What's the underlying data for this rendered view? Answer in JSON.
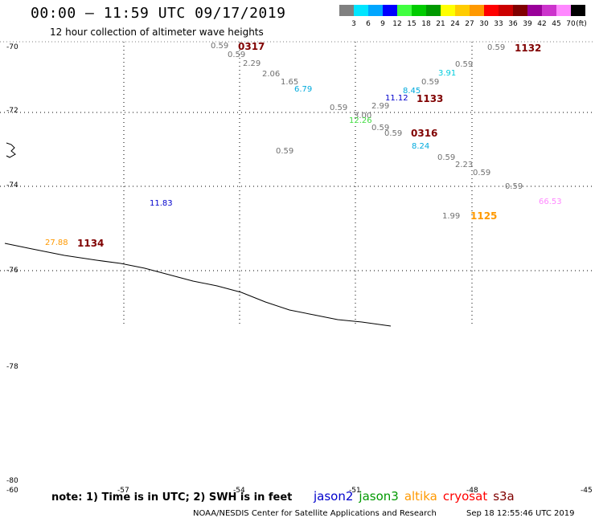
{
  "title": "00:00 — 11:59 UTC 09/17/2019",
  "subtitle": "12 hour collection of altimeter wave heights",
  "colorbar": {
    "unit": "(ft)",
    "swatches": [
      "#808080",
      "#00e5ff",
      "#00a6ff",
      "#0000ff",
      "#40ff40",
      "#00cc00",
      "#009900",
      "#ffff00",
      "#ffcc00",
      "#ff9900",
      "#ff0000",
      "#cc0000",
      "#800000",
      "#990099",
      "#cc33cc",
      "#ff88ff",
      "#000000"
    ],
    "labels": [
      "3",
      "6",
      "9",
      "12",
      "15",
      "18",
      "21",
      "24",
      "27",
      "30",
      "33",
      "36",
      "39",
      "42",
      "45",
      "70"
    ]
  },
  "lat_labels": [
    "-70",
    "-72",
    "-74",
    "-76",
    "-78",
    "-80"
  ],
  "lon_labels": [
    "-60",
    "-57",
    "-54",
    "-51",
    "-48",
    "-45"
  ],
  "values": [
    {
      "text": "0.59",
      "color": "#707070"
    },
    {
      "text": "0.59",
      "color": "#707070"
    },
    {
      "text": "2.29",
      "color": "#707070"
    },
    {
      "text": "2.06",
      "color": "#707070"
    },
    {
      "text": "1.65",
      "color": "#707070"
    },
    {
      "text": "6.79",
      "color": "#00aadd"
    },
    {
      "text": "0.59",
      "color": "#707070"
    },
    {
      "text": "3.00",
      "color": "#707070"
    },
    {
      "text": "12.26",
      "color": "#40dd40"
    },
    {
      "text": "0.59",
      "color": "#707070"
    },
    {
      "text": "0.59",
      "color": "#707070"
    },
    {
      "text": "2.99",
      "color": "#707070"
    },
    {
      "text": "11.12",
      "color": "#0000cc"
    },
    {
      "text": "8.45",
      "color": "#00aadd"
    },
    {
      "text": "0.59",
      "color": "#707070"
    },
    {
      "text": "3.91",
      "color": "#00ccdd"
    },
    {
      "text": "0.59",
      "color": "#707070"
    },
    {
      "text": "0.59",
      "color": "#707070"
    },
    {
      "text": "8.24",
      "color": "#00aadd"
    },
    {
      "text": "0.59",
      "color": "#707070"
    },
    {
      "text": "2.23",
      "color": "#707070"
    },
    {
      "text": "0.59",
      "color": "#707070"
    },
    {
      "text": "0.59",
      "color": "#707070"
    },
    {
      "text": "66.53",
      "color": "#ff88ff"
    },
    {
      "text": "1.99",
      "color": "#707070"
    },
    {
      "text": "0.59",
      "color": "#707070"
    },
    {
      "text": "11.83",
      "color": "#0000cc"
    },
    {
      "text": "27.88",
      "color": "#ff9900"
    }
  ],
  "times": [
    {
      "text": "0317",
      "color": "#800000"
    },
    {
      "text": "1132",
      "color": "#800000"
    },
    {
      "text": "1133",
      "color": "#800000"
    },
    {
      "text": "0316",
      "color": "#800000"
    },
    {
      "text": "1125",
      "color": "#ff9900"
    },
    {
      "text": "1134",
      "color": "#800000"
    }
  ],
  "note": "note: 1) Time is in UTC; 2) SWH is in feet",
  "legend": [
    {
      "text": "jason2",
      "color": "#0000cc"
    },
    {
      "text": "jason3",
      "color": "#009900"
    },
    {
      "text": "altika",
      "color": "#ff9900"
    },
    {
      "text": "cryosat",
      "color": "#ff0000"
    },
    {
      "text": "s3a",
      "color": "#800000"
    }
  ],
  "footer": "NOAA/NESDIS Center for Satellite Applications and Research",
  "footer_time": "Sep 18 12:55:46 UTC 2019"
}
